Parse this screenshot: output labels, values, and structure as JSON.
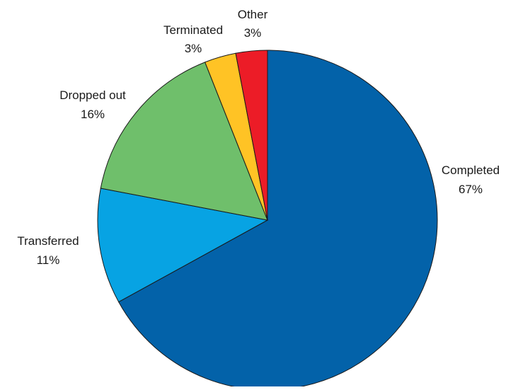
{
  "chart_data": {
    "type": "pie",
    "start_angle_deg": 0,
    "direction": "clockwise",
    "slices": [
      {
        "label": "Completed",
        "pct_label": "67%",
        "value": 67,
        "color": "#0362A9"
      },
      {
        "label": "Transferred",
        "pct_label": "11%",
        "value": 11,
        "color": "#07A3E3"
      },
      {
        "label": "Dropped out",
        "pct_label": "16%",
        "value": 16,
        "color": "#6FBF6B"
      },
      {
        "label": "Terminated",
        "pct_label": "3%",
        "value": 3,
        "color": "#FFC325"
      },
      {
        "label": "Other",
        "pct_label": "3%",
        "value": 3,
        "color": "#EC1C27"
      }
    ]
  }
}
